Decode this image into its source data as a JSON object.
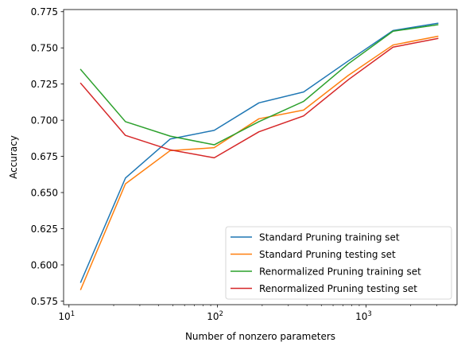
{
  "chart_data": {
    "type": "line",
    "title": "",
    "xlabel": "Number of nonzero parameters",
    "ylabel": "Accuracy",
    "xscale": "log",
    "xlim": [
      9.2,
      4100
    ],
    "ylim": [
      0.5725,
      0.7765
    ],
    "grid": false,
    "legend_position": "lower-right",
    "x": [
      12,
      24,
      48,
      95,
      190,
      380,
      760,
      1520,
      3040
    ],
    "x_tick_labels": [
      {
        "value": 10,
        "base": "10",
        "exp": "1"
      },
      {
        "value": 100,
        "base": "10",
        "exp": "2"
      },
      {
        "value": 1000,
        "base": "10",
        "exp": "3"
      }
    ],
    "y_ticks": [
      0.575,
      0.6,
      0.625,
      0.65,
      0.675,
      0.7,
      0.725,
      0.75,
      0.775
    ],
    "y_tick_labels": [
      "0.575",
      "0.600",
      "0.625",
      "0.650",
      "0.675",
      "0.700",
      "0.725",
      "0.750",
      "0.775"
    ],
    "series": [
      {
        "name": "Standard Pruning training set",
        "color": "#1f77b4",
        "values": [
          0.588,
          0.66,
          0.687,
          0.693,
          0.712,
          0.7195,
          0.741,
          0.762,
          0.767
        ]
      },
      {
        "name": "Standard Pruning testing set",
        "color": "#ff7f0e",
        "values": [
          0.583,
          0.656,
          0.679,
          0.681,
          0.701,
          0.707,
          0.731,
          0.752,
          0.758
        ]
      },
      {
        "name": "Renormalized Pruning training set",
        "color": "#2ca02c",
        "values": [
          0.735,
          0.699,
          0.689,
          0.683,
          0.699,
          0.713,
          0.739,
          0.7615,
          0.766
        ]
      },
      {
        "name": "Renormalized Pruning testing set",
        "color": "#d62728",
        "values": [
          0.7255,
          0.6895,
          0.6795,
          0.674,
          0.692,
          0.703,
          0.728,
          0.7505,
          0.7565
        ]
      }
    ]
  }
}
